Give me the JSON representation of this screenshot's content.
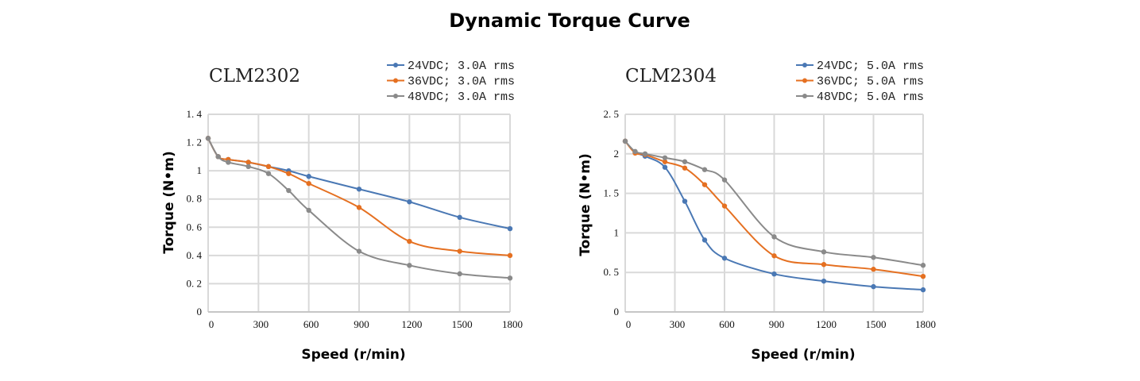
{
  "title": "Dynamic Torque Curve",
  "chart_data": [
    {
      "type": "line",
      "title": "CLM2302",
      "xlabel": "Speed (r/min)",
      "ylabel": "Torque (N•m)",
      "xlim": [
        0,
        1800
      ],
      "ylim": [
        0,
        1.4
      ],
      "xticks": [
        "0",
        "300",
        "600",
        "900",
        "1200",
        "1500",
        "1800"
      ],
      "yticks": [
        "0",
        "0. 2",
        "0. 4",
        "0. 6",
        "0. 8",
        "1",
        "1. 2",
        "1. 4"
      ],
      "grid": true,
      "legend": "top-right",
      "x": [
        0,
        60,
        120,
        240,
        360,
        480,
        600,
        900,
        1200,
        1500,
        1800
      ],
      "series": [
        {
          "name": "24VDC; 3.0A rms",
          "color": "#4a78b4",
          "values": [
            1.23,
            1.1,
            1.08,
            1.06,
            1.03,
            1.0,
            0.96,
            0.87,
            0.78,
            0.67,
            0.59
          ]
        },
        {
          "name": "36VDC; 3.0A rms",
          "color": "#e57021",
          "values": [
            1.23,
            1.1,
            1.08,
            1.06,
            1.03,
            0.98,
            0.91,
            0.74,
            0.5,
            0.43,
            0.4
          ]
        },
        {
          "name": "48VDC; 3.0A rms",
          "color": "#8a8a8a",
          "values": [
            1.23,
            1.1,
            1.06,
            1.03,
            0.98,
            0.86,
            0.72,
            0.43,
            0.33,
            0.27,
            0.24
          ]
        }
      ]
    },
    {
      "type": "line",
      "title": "CLM2304",
      "xlabel": "Speed (r/min)",
      "ylabel": "Torque (N•m)",
      "xlim": [
        0,
        1800
      ],
      "ylim": [
        0,
        2.5
      ],
      "xticks": [
        "0",
        "300",
        "600",
        "900",
        "1200",
        "1500",
        "1800"
      ],
      "yticks": [
        "0",
        "0. 5",
        "1",
        "1. 5",
        "2",
        "2. 5"
      ],
      "grid": true,
      "legend": "top-right",
      "x": [
        0,
        60,
        120,
        240,
        360,
        480,
        600,
        900,
        1200,
        1500,
        1800
      ],
      "series": [
        {
          "name": "24VDC; 5.0A rms",
          "color": "#4a78b4",
          "values": [
            2.16,
            2.02,
            1.97,
            1.83,
            1.4,
            0.91,
            0.68,
            0.48,
            0.39,
            0.32,
            0.28
          ]
        },
        {
          "name": "36VDC; 5.0A rms",
          "color": "#e57021",
          "values": [
            2.16,
            2.01,
            1.99,
            1.9,
            1.82,
            1.61,
            1.34,
            0.71,
            0.6,
            0.54,
            0.45
          ]
        },
        {
          "name": "48VDC; 5.0A rms",
          "color": "#8a8a8a",
          "values": [
            2.16,
            2.03,
            2.0,
            1.95,
            1.9,
            1.8,
            1.67,
            0.95,
            0.76,
            0.69,
            0.59
          ]
        }
      ]
    }
  ]
}
